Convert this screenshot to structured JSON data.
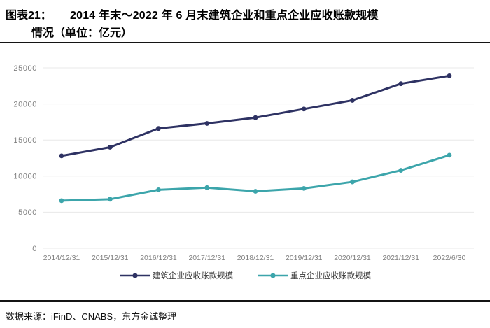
{
  "header": {
    "figure_label": "图表21：",
    "title_line1": "2014 年末～2022 年 6 月末建筑企业和重点企业应收账款规模",
    "title_line2": "情况（单位：亿元）"
  },
  "chart_data": {
    "type": "line",
    "title": "2014年末～2022年6月末建筑企业和重点企业应收账款规模情况",
    "unit": "亿元",
    "categories": [
      "2014/12/31",
      "2015/12/31",
      "2016/12/31",
      "2017/12/31",
      "2018/12/31",
      "2019/12/31",
      "2020/12/31",
      "2021/12/31",
      "2022/6/30"
    ],
    "series": [
      {
        "name": "建筑企业应收账款规模",
        "color": "#2E3263",
        "values": [
          12800,
          14000,
          16600,
          17300,
          18100,
          19300,
          20500,
          22800,
          23900
        ]
      },
      {
        "name": "重点企业应收账款规模",
        "color": "#3CA5AB",
        "values": [
          6600,
          6800,
          8100,
          8400,
          7900,
          8300,
          9200,
          10800,
          12900
        ]
      }
    ],
    "ylim": [
      0,
      25000
    ],
    "ytick_step": 5000,
    "grid": true,
    "legend_position": "bottom"
  },
  "theme": {
    "grid": "#E8E8E8",
    "axis_text": "#7F7F7F",
    "rule": "#141414",
    "legend_text": "#3A3A3A"
  },
  "footer": {
    "source": "数据来源：iFinD、CNABS，东方金诚整理"
  }
}
